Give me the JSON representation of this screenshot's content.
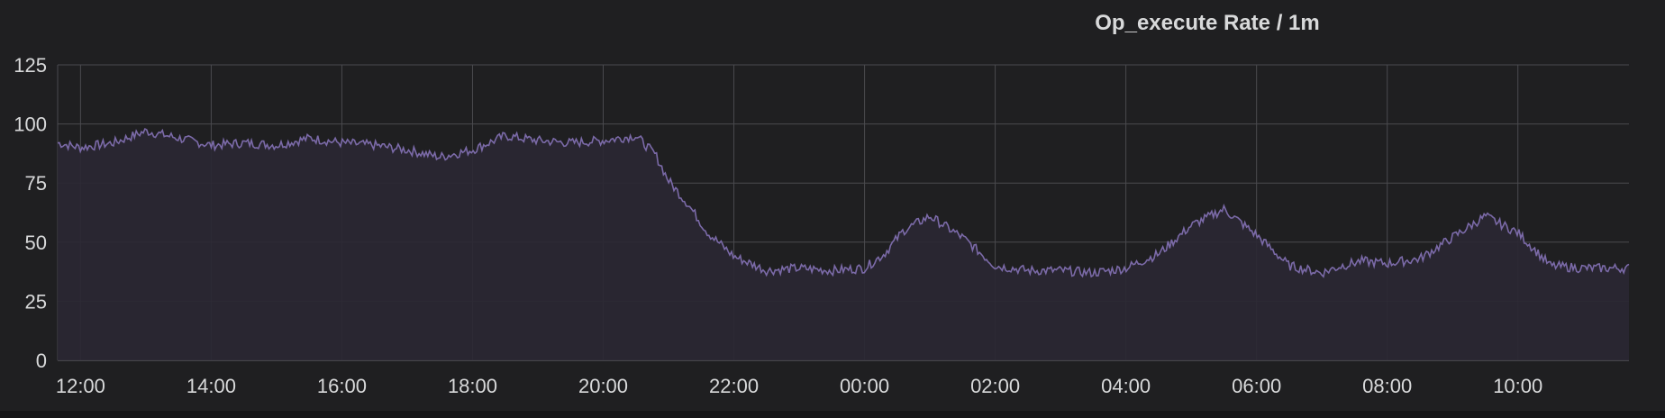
{
  "panel": {
    "title": "Op_execute Rate / 1m"
  },
  "chart_data": {
    "type": "area",
    "title": "Op_execute Rate / 1m",
    "xlabel": "",
    "ylabel": "",
    "ylim": [
      0,
      125
    ],
    "yticks": [
      "0",
      "25",
      "50",
      "75",
      "100",
      "125"
    ],
    "xticks": [
      "12:00",
      "14:00",
      "16:00",
      "18:00",
      "20:00",
      "22:00",
      "00:00",
      "02:00",
      "04:00",
      "06:00",
      "08:00",
      "10:00"
    ],
    "xrange_hours": [
      -0.35,
      23.7
    ],
    "grid": true,
    "legend": "none",
    "colors": {
      "line": "#7b6aa8",
      "fill": "#2a2733",
      "grid": "#4a4a4e",
      "background": "#1f1f21",
      "text": "#d8d9da"
    },
    "series": [
      {
        "x": [
          -0.35,
          0,
          0.5,
          1,
          1.5,
          2,
          2.5,
          3,
          3.5,
          4,
          4.5,
          5,
          5.5,
          6,
          6.5,
          7,
          7.5,
          8,
          8.5,
          8.8,
          9,
          9.3,
          9.6,
          10,
          10.5,
          11,
          11.5,
          12,
          12.3,
          12.6,
          13,
          13.5,
          14,
          14.5,
          15,
          15.5,
          16,
          16.5,
          17,
          17.5,
          18,
          18.5,
          19,
          19.3,
          19.6,
          20,
          20.5,
          21,
          21.5,
          22,
          22.5,
          23,
          23.7
        ],
        "values": [
          92,
          90,
          92,
          97,
          94,
          91,
          92,
          91,
          94,
          92,
          91,
          89,
          86,
          89,
          95,
          93,
          92,
          93,
          95,
          87,
          76,
          66,
          54,
          44,
          38,
          39,
          38,
          39,
          45,
          55,
          61,
          52,
          40,
          38,
          38,
          37,
          39,
          45,
          57,
          64,
          53,
          40,
          37,
          40,
          42,
          41,
          43,
          52,
          61,
          54,
          40,
          39,
          39
        ]
      }
    ]
  }
}
